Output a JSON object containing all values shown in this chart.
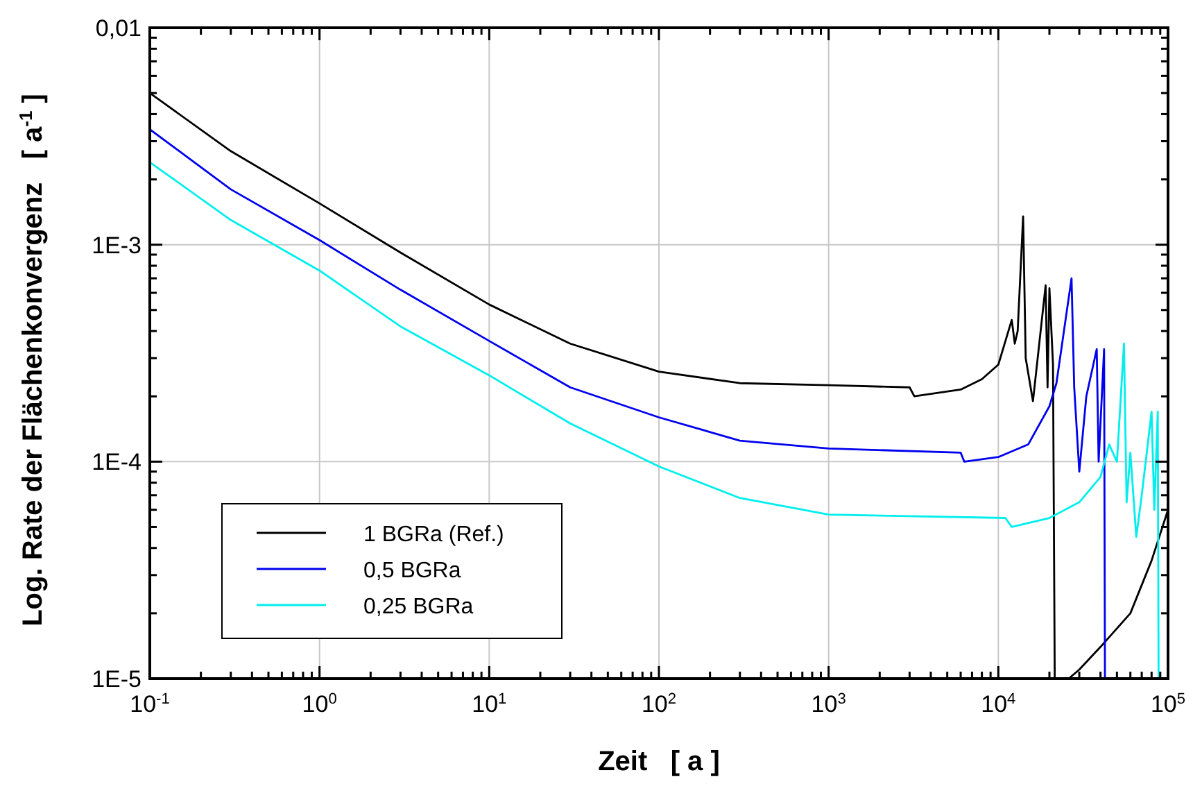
{
  "chart_data": {
    "type": "line",
    "xlabel": "Zeit   [ a ]",
    "ylabel": "Log. Rate der Flächenkonvergenz   [ a$^{-1}$ ]",
    "log": "xy",
    "grid": true,
    "legend": "bottom left",
    "line_style": "solid",
    "xlim": [
      0.1,
      100000
    ],
    "ylim": [
      1e-05,
      0.01
    ],
    "xticks": [
      {
        "value": 0.1,
        "label": "10$^{-1}$"
      },
      {
        "value": 0.2,
        "label": null
      },
      {
        "value": 0.3,
        "label": null
      },
      {
        "value": 0.4,
        "label": null
      },
      {
        "value": 0.5,
        "label": null
      },
      {
        "value": 0.6,
        "label": null
      },
      {
        "value": 0.7,
        "label": null
      },
      {
        "value": 0.8,
        "label": null
      },
      {
        "value": 0.9,
        "label": null
      },
      {
        "value": 1,
        "label": "10$^{0}$"
      },
      {
        "value": 2,
        "label": null
      },
      {
        "value": 3,
        "label": null
      },
      {
        "value": 4,
        "label": null
      },
      {
        "value": 5,
        "label": null
      },
      {
        "value": 6,
        "label": null
      },
      {
        "value": 7,
        "label": null
      },
      {
        "value": 8,
        "label": null
      },
      {
        "value": 9,
        "label": null
      },
      {
        "value": 10,
        "label": "10$^{1}$"
      },
      {
        "value": 20,
        "label": null
      },
      {
        "value": 30,
        "label": null
      },
      {
        "value": 40,
        "label": null
      },
      {
        "value": 50,
        "label": null
      },
      {
        "value": 60,
        "label": null
      },
      {
        "value": 70,
        "label": null
      },
      {
        "value": 80,
        "label": null
      },
      {
        "value": 90,
        "label": null
      },
      {
        "value": 100,
        "label": "10$^{2}$"
      },
      {
        "value": 200,
        "label": null
      },
      {
        "value": 300,
        "label": null
      },
      {
        "value": 400,
        "label": null
      },
      {
        "value": 500,
        "label": null
      },
      {
        "value": 600,
        "label": null
      },
      {
        "value": 700,
        "label": null
      },
      {
        "value": 800,
        "label": null
      },
      {
        "value": 900,
        "label": null
      },
      {
        "value": 1000,
        "label": "10$^{3}$"
      },
      {
        "value": 2000,
        "label": null
      },
      {
        "value": 3000,
        "label": null
      },
      {
        "value": 4000,
        "label": null
      },
      {
        "value": 5000,
        "label": null
      },
      {
        "value": 6000,
        "label": null
      },
      {
        "value": 7000,
        "label": null
      },
      {
        "value": 8000,
        "label": null
      },
      {
        "value": 9000,
        "label": null
      },
      {
        "value": 10000,
        "label": "10$^{4}$"
      },
      {
        "value": 20000,
        "label": null
      },
      {
        "value": 30000,
        "label": null
      },
      {
        "value": 40000,
        "label": null
      },
      {
        "value": 50000,
        "label": null
      },
      {
        "value": 60000,
        "label": null
      },
      {
        "value": 70000,
        "label": null
      },
      {
        "value": 80000,
        "label": null
      },
      {
        "value": 90000,
        "label": null
      },
      {
        "value": 100000,
        "label": "10$^{5}$"
      }
    ],
    "yticks": [
      {
        "value": 1e-05,
        "label": "1E-5"
      },
      {
        "value": 2e-05,
        "label": null
      },
      {
        "value": 3e-05,
        "label": null
      },
      {
        "value": 4e-05,
        "label": null
      },
      {
        "value": 5e-05,
        "label": null
      },
      {
        "value": 6e-05,
        "label": null
      },
      {
        "value": 7e-05,
        "label": null
      },
      {
        "value": 8e-05,
        "label": null
      },
      {
        "value": 9e-05,
        "label": null
      },
      {
        "value": 0.0001,
        "label": "1E-4"
      },
      {
        "value": 0.0002,
        "label": null
      },
      {
        "value": 0.0003,
        "label": null
      },
      {
        "value": 0.0004,
        "label": null
      },
      {
        "value": 0.0005,
        "label": null
      },
      {
        "value": 0.0006,
        "label": null
      },
      {
        "value": 0.0007,
        "label": null
      },
      {
        "value": 0.0008,
        "label": null
      },
      {
        "value": 0.0009,
        "label": null
      },
      {
        "value": 0.001,
        "label": "1E-3"
      },
      {
        "value": 0.002,
        "label": null
      },
      {
        "value": 0.003,
        "label": null
      },
      {
        "value": 0.004,
        "label": null
      },
      {
        "value": 0.005,
        "label": null
      },
      {
        "value": 0.006,
        "label": null
      },
      {
        "value": 0.007,
        "label": null
      },
      {
        "value": 0.008,
        "label": null
      },
      {
        "value": 0.009,
        "label": null
      },
      {
        "value": 0.01,
        "label": "0,01"
      }
    ],
    "series": [
      {
        "name": "1 BGRa (Ref.)",
        "color": "#000000",
        "x": [
          0.1,
          0.3,
          1,
          3,
          10,
          30,
          100,
          300,
          1000,
          3000,
          3200,
          6000,
          8000,
          10000,
          12000,
          12500,
          13000,
          14000,
          14500,
          16000,
          19000,
          19500,
          20000,
          21000,
          21500,
          26000,
          30000,
          40000,
          60000,
          80000,
          100000
        ],
        "values": [
          0.005,
          0.0027,
          0.00155,
          0.00092,
          0.00053,
          0.00035,
          0.00026,
          0.00023,
          0.000225,
          0.00022,
          0.0002,
          0.000215,
          0.00024,
          0.00028,
          0.00045,
          0.00035,
          0.0004,
          0.00135,
          0.0003,
          0.00019,
          0.00065,
          0.00022,
          0.00063,
          0.00028,
          1e-05,
          1e-05,
          1.1e-05,
          1.4e-05,
          2e-05,
          3.5e-05,
          6e-05
        ]
      },
      {
        "name": "0,5 BGRa",
        "color": "#0000ee",
        "x": [
          0.1,
          0.3,
          1,
          3,
          10,
          30,
          100,
          300,
          1000,
          6000,
          6300,
          10000,
          15000,
          20000,
          22000,
          27000,
          28000,
          30000,
          33000,
          38000,
          39000,
          42000,
          42500
        ],
        "values": [
          0.0034,
          0.0018,
          0.00105,
          0.00062,
          0.00036,
          0.00022,
          0.00016,
          0.000125,
          0.000115,
          0.00011,
          0.0001,
          0.000105,
          0.00012,
          0.00018,
          0.00023,
          0.0007,
          0.00022,
          9e-05,
          0.0002,
          0.00033,
          0.0001,
          0.00033,
          1e-05
        ]
      },
      {
        "name": "0,25 BGRa",
        "color": "#00eeee",
        "x": [
          0.1,
          0.3,
          1,
          3,
          10,
          30,
          100,
          300,
          1000,
          11000,
          12000,
          20000,
          30000,
          40000,
          45000,
          50000,
          55000,
          57000,
          60000,
          65000,
          70000,
          80000,
          83000,
          87000,
          88000
        ],
        "values": [
          0.0024,
          0.0013,
          0.00076,
          0.00042,
          0.00025,
          0.00015,
          9.5e-05,
          6.8e-05,
          5.7e-05,
          5.5e-05,
          5e-05,
          5.5e-05,
          6.5e-05,
          8.5e-05,
          0.00012,
          0.0001,
          0.00035,
          6.5e-05,
          0.00011,
          4.5e-05,
          7e-05,
          0.00017,
          6e-05,
          0.00017,
          1e-05
        ]
      }
    ]
  }
}
